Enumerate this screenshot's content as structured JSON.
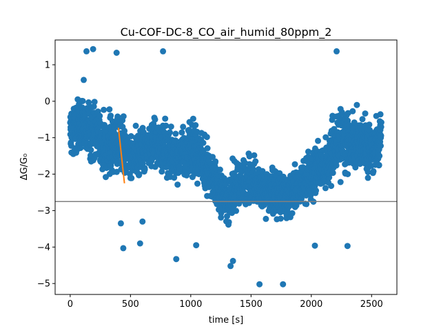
{
  "chart_data": {
    "type": "scatter",
    "title": "Cu-COF-DC-8_CO_air_humid_80ppm_2",
    "xlabel": "time [s]",
    "ylabel": "ΔG/G₀",
    "xlim": [
      -125,
      2710
    ],
    "ylim": [
      -5.3,
      1.68
    ],
    "xticks": [
      0,
      500,
      1000,
      1500,
      2000,
      2500
    ],
    "yticks": [
      1,
      0,
      -1,
      -2,
      -3,
      -4,
      -5
    ],
    "grid": false,
    "legend": "none",
    "series": [
      {
        "kind": "scatter",
        "color": "#1f77b4",
        "profile": [
          {
            "x": 0,
            "y": -0.9,
            "spread": 0.9
          },
          {
            "x": 100,
            "y": -0.6,
            "spread": 1.0
          },
          {
            "x": 200,
            "y": -0.9,
            "spread": 1.0
          },
          {
            "x": 300,
            "y": -1.3,
            "spread": 1.0
          },
          {
            "x": 400,
            "y": -1.1,
            "spread": 1.0
          },
          {
            "x": 500,
            "y": -1.5,
            "spread": 0.9
          },
          {
            "x": 600,
            "y": -1.4,
            "spread": 0.9
          },
          {
            "x": 700,
            "y": -1.2,
            "spread": 0.9
          },
          {
            "x": 800,
            "y": -1.4,
            "spread": 0.9
          },
          {
            "x": 900,
            "y": -1.6,
            "spread": 0.9
          },
          {
            "x": 1000,
            "y": -1.3,
            "spread": 0.9
          },
          {
            "x": 1100,
            "y": -1.6,
            "spread": 0.9
          },
          {
            "x": 1200,
            "y": -2.3,
            "spread": 0.8
          },
          {
            "x": 1300,
            "y": -2.7,
            "spread": 0.8
          },
          {
            "x": 1400,
            "y": -2.3,
            "spread": 0.8
          },
          {
            "x": 1500,
            "y": -2.2,
            "spread": 0.8
          },
          {
            "x": 1600,
            "y": -2.4,
            "spread": 0.8
          },
          {
            "x": 1700,
            "y": -2.5,
            "spread": 0.8
          },
          {
            "x": 1800,
            "y": -2.6,
            "spread": 0.8
          },
          {
            "x": 1900,
            "y": -2.3,
            "spread": 0.8
          },
          {
            "x": 2000,
            "y": -2.0,
            "spread": 0.9
          },
          {
            "x": 2100,
            "y": -1.9,
            "spread": 0.9
          },
          {
            "x": 2200,
            "y": -1.2,
            "spread": 1.0
          },
          {
            "x": 2300,
            "y": -1.0,
            "spread": 1.0
          },
          {
            "x": 2400,
            "y": -1.2,
            "spread": 1.0
          },
          {
            "x": 2500,
            "y": -1.3,
            "spread": 1.0
          },
          {
            "x": 2580,
            "y": -1.0,
            "spread": 0.9
          }
        ],
        "outliers": [
          {
            "x": 190,
            "y": 1.43
          },
          {
            "x": 135,
            "y": 1.37
          },
          {
            "x": 385,
            "y": 1.33
          },
          {
            "x": 770,
            "y": 1.37
          },
          {
            "x": 2210,
            "y": 1.37
          },
          {
            "x": 1570,
            "y": -5.02
          },
          {
            "x": 1765,
            "y": -5.02
          },
          {
            "x": 880,
            "y": -4.33
          },
          {
            "x": 440,
            "y": -4.03
          },
          {
            "x": 580,
            "y": -3.9
          },
          {
            "x": 2300,
            "y": -3.97
          },
          {
            "x": 1330,
            "y": -4.52
          },
          {
            "x": 1350,
            "y": -4.38
          },
          {
            "x": 420,
            "y": -3.35
          },
          {
            "x": 600,
            "y": -3.3
          },
          {
            "x": 1045,
            "y": -3.95
          },
          {
            "x": 2030,
            "y": -3.96
          }
        ]
      },
      {
        "kind": "line",
        "color": "#ff7f0e",
        "x": [
          400,
          450
        ],
        "y": [
          -0.73,
          -2.25
        ]
      },
      {
        "kind": "hline",
        "color": "#808080",
        "y": -2.75
      }
    ]
  }
}
